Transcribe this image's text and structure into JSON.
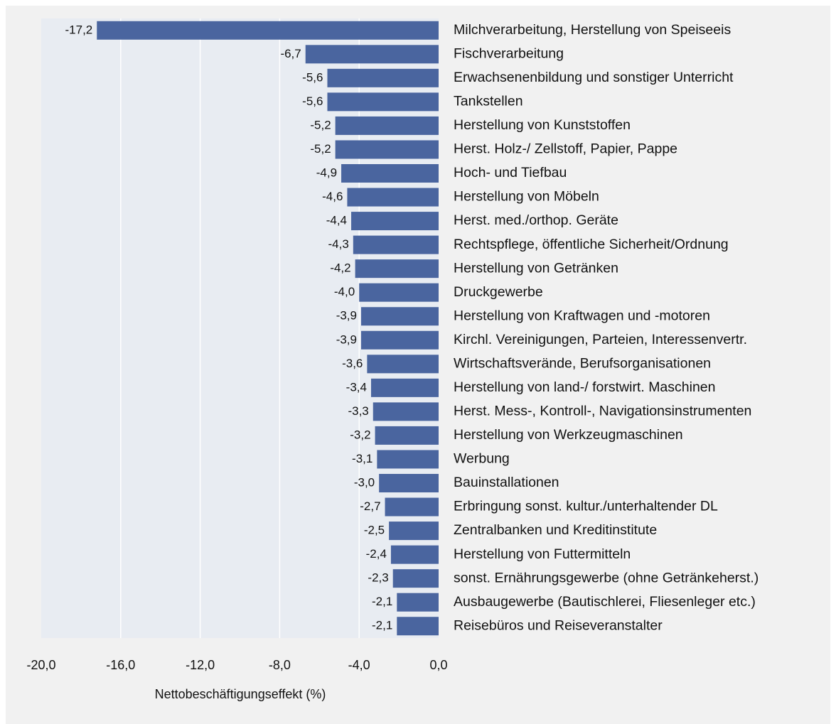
{
  "chart_data": {
    "type": "barh",
    "xlabel": "Nettobeschäftigungseffekt (%)",
    "categories": [
      "Milchverarbeitung, Herstellung von Speiseeis",
      "Fischverarbeitung",
      "Erwachsenenbildung und sonstiger Unterricht",
      "Tankstellen",
      "Herstellung von Kunststoffen",
      "Herst. Holz-/ Zellstoff, Papier, Pappe",
      "Hoch- und Tiefbau",
      "Herstellung von Möbeln",
      "Herst. med./orthop. Geräte",
      "Rechtspflege, öffentliche Sicherheit/Ordnung",
      "Herstellung von Getränken",
      "Druckgewerbe",
      "Herstellung von Kraftwagen und -motoren",
      "Kirchl. Vereinigungen, Parteien, Interessenvertr.",
      "Wirtschaftsverände, Berufsorganisationen",
      "Herstellung von land-/ forstwirt. Maschinen",
      "Herst. Mess-, Kontroll-, Navigationsinstrumenten",
      "Herstellung von Werkzeugmaschinen",
      "Werbung",
      "Bauinstallationen",
      "Erbringung sonst. kultur./unterhaltender DL",
      "Zentralbanken und Kreditinstitute",
      "Herstellung von Futtermitteln",
      "sonst. Ernährungsgewerbe (ohne Getränkeherst.)",
      "Ausbaugewerbe (Bautischlerei, Fliesenleger etc.)",
      "Reisebüros und Reiseveranstalter"
    ],
    "values": [
      -17.2,
      -6.7,
      -5.6,
      -5.6,
      -5.2,
      -5.2,
      -4.9,
      -4.6,
      -4.4,
      -4.3,
      -4.2,
      -4.0,
      -3.9,
      -3.9,
      -3.6,
      -3.4,
      -3.3,
      -3.2,
      -3.1,
      -3.0,
      -2.7,
      -2.5,
      -2.4,
      -2.3,
      -2.1,
      -2.1
    ],
    "value_labels": [
      "-17,2",
      "-6,7",
      "-5,6",
      "-5,6",
      "-5,2",
      "-5,2",
      "-4,9",
      "-4,6",
      "-4,4",
      "-4,3",
      "-4,2",
      "-4,0",
      "-3,9",
      "-3,9",
      "-3,6",
      "-3,4",
      "-3,3",
      "-3,2",
      "-3,1",
      "-3,0",
      "-2,7",
      "-2,5",
      "-2,4",
      "-2,3",
      "-2,1",
      "-2,1"
    ],
    "color": "#4a659f",
    "xlim": [
      -20,
      0
    ],
    "xticks": [
      {
        "value": -20,
        "label": "-20,0"
      },
      {
        "value": -16,
        "label": "-16,0"
      },
      {
        "value": -12,
        "label": "-12,0"
      },
      {
        "value": -8,
        "label": "-8,0"
      },
      {
        "value": -4,
        "label": "-4,0"
      },
      {
        "value": 0,
        "label": "0,0"
      }
    ],
    "grid": true
  }
}
